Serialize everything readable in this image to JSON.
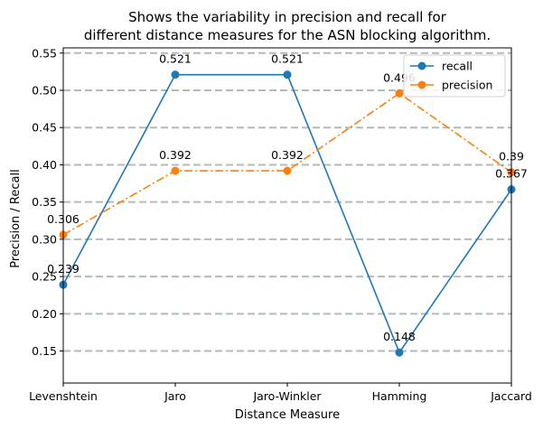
{
  "chart_data": {
    "type": "line",
    "title": [
      "Shows the variability in precision and recall for",
      "different distance measures for the ASN blocking algorithm."
    ],
    "xlabel": "Distance Measure",
    "ylabel": "Precision / Recall",
    "categories": [
      "Levenshtein",
      "Jaro",
      "Jaro-Winkler",
      "Hamming",
      "Jaccard"
    ],
    "ylim": [
      0.107,
      0.557
    ],
    "yticks": [
      "0.15",
      "0.20",
      "0.25",
      "0.30",
      "0.35",
      "0.40",
      "0.45",
      "0.50",
      "0.55"
    ],
    "grid": {
      "axis": "y",
      "style": "dashed",
      "color": "#b0bcbc"
    },
    "legend": {
      "position": "top-right"
    },
    "series": [
      {
        "name": "recall",
        "values": [
          0.239,
          0.521,
          0.521,
          0.148,
          0.367
        ],
        "labels": [
          "0.239",
          "0.521",
          "0.521",
          "0.148",
          "0.367"
        ],
        "color": "#1f77b4",
        "line_style": "solid",
        "marker": "circle"
      },
      {
        "name": "precision",
        "values": [
          0.306,
          0.392,
          0.392,
          0.496,
          0.39
        ],
        "labels": [
          "0.306",
          "0.392",
          "0.392",
          "0.496",
          "0.39"
        ],
        "color": "#ff7f0e",
        "line_style": "dashdot",
        "marker": "circle"
      }
    ]
  }
}
